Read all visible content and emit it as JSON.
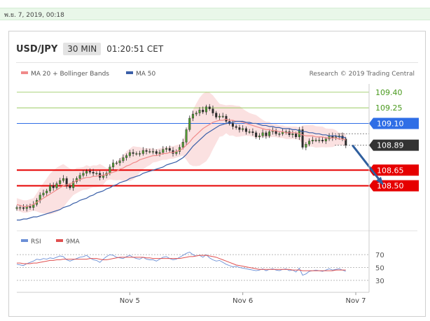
{
  "timestamp": "พ.ย. 7, 2019, 00:18",
  "header": {
    "symbol": "USD/JPY",
    "timeframe": "30 MIN",
    "time": "01:20:51 CET"
  },
  "legend": {
    "ma20_label": "MA 20 + Bollinger Bands",
    "ma50_label": "MA 50",
    "credit": "Research © 2019 Trading Central",
    "rsi_label": "RSI",
    "rsi_ma_label": "9MA"
  },
  "colors": {
    "ma20": "#f08a8a",
    "ma50": "#3a5fa8",
    "bollinger_fill": "#f9d4d4",
    "support": "#e60000",
    "resistance_green": "#8bc34a",
    "pivot_blue": "#2f6ee6",
    "current_price": "#333333",
    "arrow": "#2f5f9e",
    "rsi": "#6b8fd6",
    "rsi_ma": "#e05050"
  },
  "chart_data": {
    "type": "candlestick",
    "ylim": [
      108.1,
      109.48
    ],
    "xlim": [
      0,
      106
    ],
    "x_ticks": [
      {
        "x": 34,
        "label": "Nov 5"
      },
      {
        "x": 68,
        "label": "Nov 6"
      },
      {
        "x": 102,
        "label": "Nov 7"
      }
    ],
    "levels": [
      {
        "value": 109.4,
        "label": "109.40",
        "style": "resistance"
      },
      {
        "value": 109.25,
        "label": "109.25",
        "style": "resistance"
      },
      {
        "value": 109.1,
        "label": "109.10",
        "style": "pivot"
      },
      {
        "value": 108.65,
        "label": "108.65",
        "style": "support"
      },
      {
        "value": 108.5,
        "label": "108.50",
        "style": "support"
      }
    ],
    "current_price": {
      "value": 108.89,
      "label": "108.89"
    },
    "forecast_arrow": {
      "from": [
        101,
        108.89
      ],
      "to": [
        110,
        108.52
      ]
    },
    "close": [
      108.29,
      108.29,
      108.28,
      108.3,
      108.29,
      108.32,
      108.36,
      108.41,
      108.43,
      108.45,
      108.5,
      108.48,
      108.52,
      108.55,
      108.57,
      108.5,
      108.48,
      108.54,
      108.57,
      108.6,
      108.62,
      108.64,
      108.63,
      108.62,
      108.62,
      108.58,
      108.6,
      108.62,
      108.68,
      108.72,
      108.72,
      108.74,
      108.77,
      108.79,
      108.82,
      108.81,
      108.81,
      108.81,
      108.84,
      108.83,
      108.83,
      108.83,
      108.81,
      108.82,
      108.85,
      108.86,
      108.84,
      108.81,
      108.83,
      108.87,
      108.92,
      109.04,
      109.15,
      109.19,
      109.2,
      109.23,
      109.21,
      109.26,
      109.24,
      109.2,
      109.16,
      109.17,
      109.17,
      109.12,
      109.1,
      109.07,
      109.06,
      109.04,
      109.05,
      109.02,
      109.02,
      109.01,
      108.97,
      108.98,
      109.01,
      108.98,
      109.02,
      109.03,
      109.0,
      109.0,
      109.02,
      109.02,
      108.99,
      109.0,
      108.97,
      109.04,
      108.87,
      108.9,
      108.93,
      108.94,
      108.94,
      108.94,
      108.93,
      108.95,
      108.98,
      108.96,
      108.97,
      108.98,
      108.95,
      108.89
    ],
    "series": [
      {
        "name": "MA 20",
        "values": [
          108.32,
          108.31,
          108.3,
          108.3,
          108.31,
          108.32,
          108.34,
          108.36,
          108.38,
          108.4,
          108.42,
          108.44,
          108.46,
          108.48,
          108.5,
          108.51,
          108.52,
          108.53,
          108.55,
          108.56,
          108.57,
          108.58,
          108.58,
          108.59,
          108.59,
          108.6,
          108.6,
          108.61,
          108.62,
          108.63,
          108.64,
          108.66,
          108.67,
          108.69,
          108.7,
          108.72,
          108.73,
          108.75,
          108.76,
          108.77,
          108.78,
          108.79,
          108.79,
          108.8,
          108.81,
          108.81,
          108.82,
          108.82,
          108.83,
          108.84,
          108.86,
          108.89,
          108.92,
          108.96,
          108.99,
          109.02,
          109.05,
          109.07,
          109.09,
          109.11,
          109.12,
          109.13,
          109.13,
          109.14,
          109.13,
          109.13,
          109.12,
          109.12,
          109.11,
          109.1,
          109.09,
          109.08,
          109.07,
          109.06,
          109.05,
          109.04,
          109.04,
          109.03,
          109.03,
          109.02,
          109.02,
          109.01,
          109.01,
          109.01,
          109.01,
          109.0,
          108.99,
          108.98,
          108.98,
          108.98,
          108.97,
          108.97,
          108.97,
          108.96,
          108.96,
          108.96,
          108.96,
          108.95,
          108.95,
          108.94
        ]
      },
      {
        "name": "MA 50",
        "values": [
          108.17,
          108.17,
          108.18,
          108.18,
          108.19,
          108.2,
          108.2,
          108.21,
          108.22,
          108.23,
          108.24,
          108.25,
          108.26,
          108.27,
          108.29,
          108.3,
          108.31,
          108.33,
          108.34,
          108.36,
          108.37,
          108.38,
          108.4,
          108.41,
          108.43,
          108.44,
          108.45,
          108.47,
          108.48,
          108.5,
          108.51,
          108.53,
          108.54,
          108.55,
          108.57,
          108.58,
          108.59,
          108.6,
          108.62,
          108.63,
          108.64,
          108.65,
          108.66,
          108.67,
          108.68,
          108.7,
          108.71,
          108.72,
          108.73,
          108.75,
          108.77,
          108.8,
          108.84,
          108.88,
          108.91,
          108.94,
          108.97,
          109.0,
          109.02,
          109.04,
          109.06,
          109.08,
          109.09,
          109.1,
          109.11,
          109.11,
          109.12,
          109.12,
          109.12,
          109.11,
          109.11,
          109.1,
          109.1,
          109.09,
          109.08,
          109.08,
          109.07,
          109.07,
          109.06,
          109.06,
          109.05,
          109.05,
          109.05,
          109.04,
          109.04,
          109.03,
          109.02,
          109.02,
          109.01,
          109.01,
          109.0,
          109.0,
          108.99,
          108.99,
          108.98,
          108.98,
          108.98,
          108.97,
          108.97,
          108.96
        ]
      }
    ],
    "rsi": {
      "ylim": [
        20,
        80
      ],
      "ticks": [
        70,
        50,
        30
      ],
      "rsi": [
        55,
        54,
        53,
        56,
        58,
        60,
        63,
        62,
        64,
        63,
        65,
        64,
        66,
        68,
        67,
        62,
        60,
        62,
        64,
        66,
        67,
        69,
        65,
        62,
        61,
        58,
        63,
        67,
        70,
        69,
        66,
        65,
        64,
        67,
        69,
        66,
        64,
        63,
        66,
        63,
        62,
        62,
        60,
        63,
        66,
        67,
        64,
        62,
        63,
        66,
        69,
        72,
        74,
        70,
        68,
        69,
        66,
        70,
        65,
        62,
        60,
        61,
        58,
        55,
        53,
        51,
        52,
        50,
        49,
        48,
        47,
        46,
        45,
        46,
        48,
        45,
        47,
        48,
        46,
        45,
        47,
        48,
        45,
        46,
        43,
        49,
        38,
        40,
        44,
        45,
        46,
        45,
        44,
        46,
        48,
        46,
        47,
        48,
        46,
        44
      ],
      "rsi_ma": [
        57,
        57,
        56,
        56,
        56,
        57,
        57,
        58,
        59,
        60,
        61,
        61,
        62,
        62,
        63,
        63,
        63,
        63,
        63,
        63,
        63,
        63,
        64,
        64,
        64,
        63,
        62,
        62,
        63,
        64,
        65,
        66,
        66,
        66,
        66,
        66,
        66,
        66,
        66,
        65,
        65,
        64,
        64,
        64,
        64,
        64,
        64,
        64,
        64,
        64,
        65,
        66,
        67,
        67,
        68,
        69,
        69,
        69,
        68,
        67,
        66,
        64,
        62,
        60,
        58,
        56,
        54,
        53,
        52,
        51,
        50,
        49,
        48,
        47,
        47,
        47,
        47,
        47,
        47,
        47,
        47,
        47,
        47,
        46,
        46,
        46,
        45,
        45,
        45,
        45,
        45,
        45,
        45,
        45,
        45,
        45,
        46,
        46,
        46,
        46
      ]
    }
  }
}
